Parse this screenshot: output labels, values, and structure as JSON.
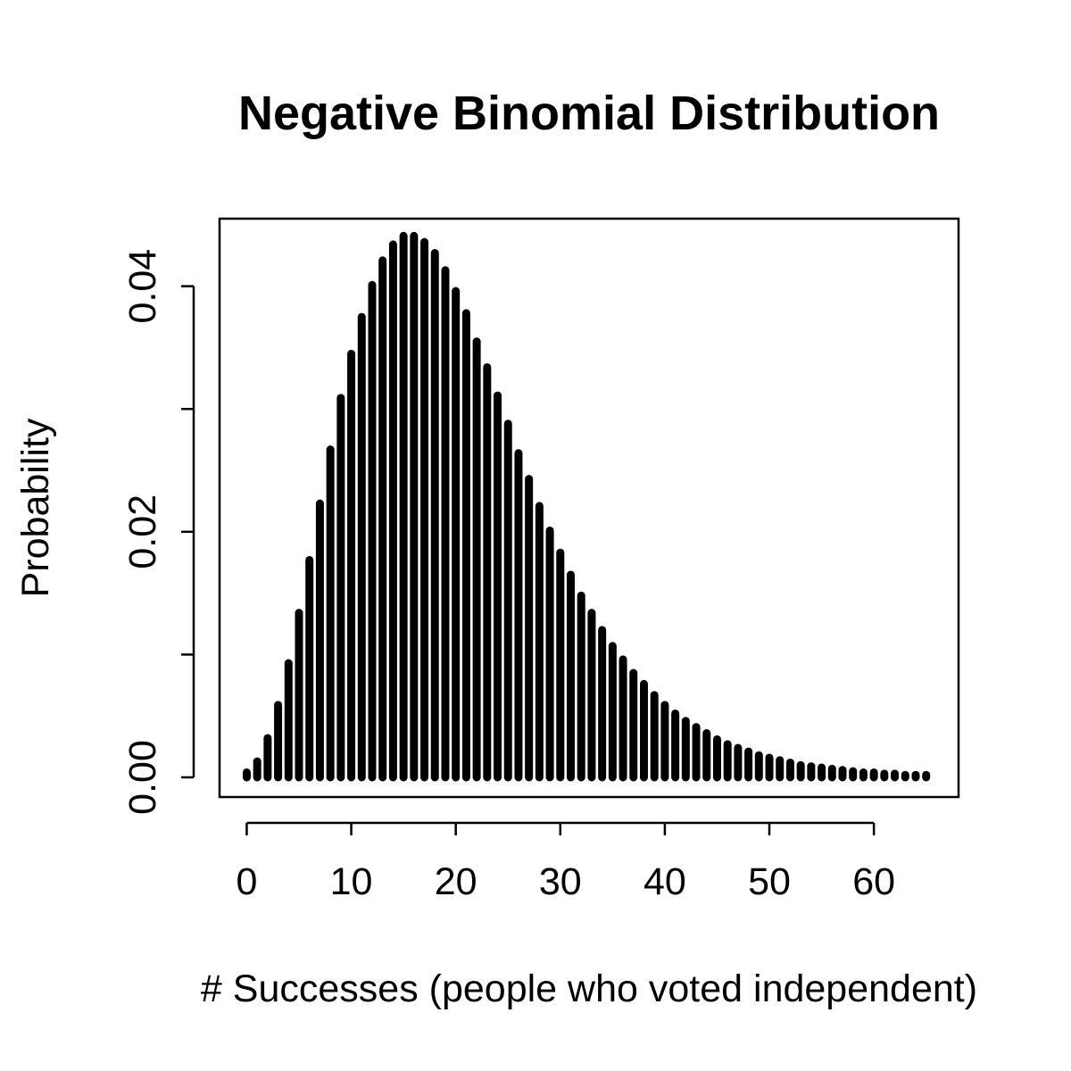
{
  "chart_data": {
    "type": "bar",
    "title": "Negative Binomial Distribution",
    "xlabel": "# Successes (people who voted independent)",
    "ylabel": "Probability",
    "xlim": [
      -2.6,
      68.1
    ],
    "ylim": [
      -0.0016,
      0.0455
    ],
    "x_ticks": [
      0,
      10,
      20,
      30,
      40,
      50,
      60
    ],
    "x_tick_labels": [
      "0",
      "10",
      "20",
      "30",
      "40",
      "50",
      "60"
    ],
    "y_ticks": [
      0,
      0.01,
      0.02,
      0.03,
      0.04
    ],
    "y_tick_labels": [
      "0.00",
      "",
      "0.02",
      "",
      "0.04"
    ],
    "grid": false,
    "legend": "none",
    "bar_color": "#000000",
    "x": [
      0,
      1,
      2,
      3,
      4,
      5,
      6,
      7,
      8,
      9,
      10,
      11,
      12,
      13,
      14,
      15,
      16,
      17,
      18,
      19,
      20,
      21,
      22,
      23,
      24,
      25,
      26,
      27,
      28,
      29,
      30,
      31,
      32,
      33,
      34,
      35,
      36,
      37,
      38,
      39,
      40,
      41,
      42,
      43,
      44,
      45,
      46,
      47,
      48,
      49,
      50,
      51,
      52,
      53,
      54,
      55,
      56,
      57,
      58,
      59,
      60,
      61,
      62,
      63,
      64,
      65
    ],
    "values": [
      0.0004,
      0.0013,
      0.0032,
      0.0059,
      0.0093,
      0.0134,
      0.0177,
      0.0223,
      0.0267,
      0.0309,
      0.0345,
      0.0375,
      0.0401,
      0.0421,
      0.0434,
      0.0441,
      0.0441,
      0.0436,
      0.0427,
      0.0413,
      0.0396,
      0.0378,
      0.0355,
      0.0334,
      0.0311,
      0.0288,
      0.0264,
      0.0243,
      0.0221,
      0.0201,
      0.0183,
      0.0165,
      0.0148,
      0.0134,
      0.012,
      0.0107,
      0.0096,
      0.0085,
      0.0076,
      0.0067,
      0.0059,
      0.0052,
      0.0046,
      0.0041,
      0.0036,
      0.0031,
      0.0027,
      0.0024,
      0.0021,
      0.0018,
      0.0016,
      0.0014,
      0.0012,
      0.001,
      0.0009,
      0.0008,
      0.0007,
      0.0006,
      0.0005,
      0.0004,
      0.0004,
      0.0003,
      0.0003,
      0.0002,
      0.0002,
      0.0002
    ]
  }
}
